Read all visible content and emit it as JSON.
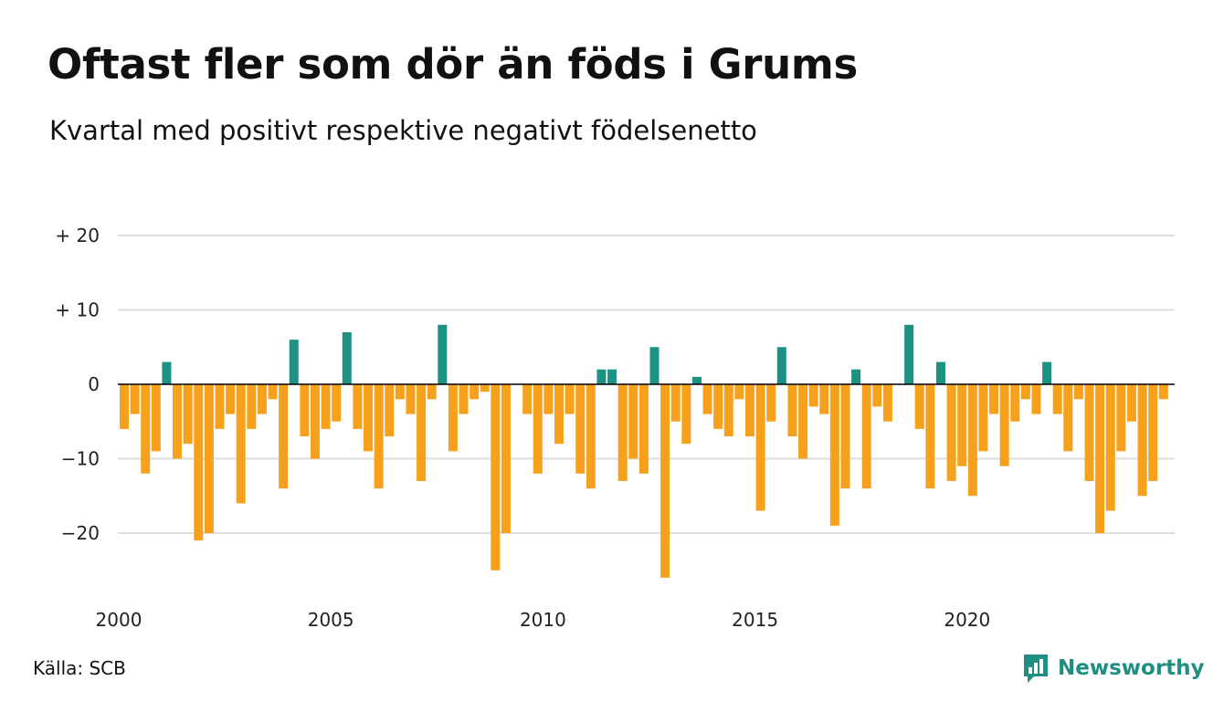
{
  "title": "Oftast fler som dör än föds i Grums",
  "subtitle": "Kvartal med positivt respektive negativt födelsenetto",
  "source": "Källa: SCB",
  "brand": {
    "name": "Newsworthy",
    "icon": "bar-chart-speech-bubble-icon",
    "color": "#1e8f82"
  },
  "colors": {
    "positive": "#1c9284",
    "negative": "#f7a01c",
    "grid": "#dedede",
    "zero_line": "#000000"
  },
  "chart_data": {
    "type": "bar",
    "title": "Oftast fler som dör än föds i Grums",
    "subtitle": "Kvartal med positivt respektive negativt födelsenetto",
    "x_start": 2000,
    "x_ticks": [
      "2000",
      "2005",
      "2010",
      "2015",
      "2020"
    ],
    "y_ticks": [
      {
        "value": 20,
        "label": "+ 20"
      },
      {
        "value": 10,
        "label": "+ 10"
      },
      {
        "value": 0,
        "label": "0"
      },
      {
        "value": -10,
        "label": "−10"
      },
      {
        "value": -20,
        "label": "−20"
      }
    ],
    "ylim": [
      -26,
      20
    ],
    "grid": true,
    "legend": "none",
    "values": [
      -6,
      -4,
      -12,
      -9,
      3,
      -10,
      -8,
      -21,
      -20,
      -6,
      -4,
      -16,
      -6,
      -4,
      -2,
      -14,
      6,
      -7,
      -10,
      -6,
      -5,
      7,
      -6,
      -9,
      -14,
      -7,
      -2,
      -4,
      -13,
      -2,
      8,
      -9,
      -4,
      -2,
      -1,
      -25,
      -20,
      0,
      -4,
      -12,
      -4,
      -8,
      -4,
      -12,
      -14,
      2,
      2,
      -13,
      -10,
      -12,
      5,
      -26,
      -5,
      -8,
      1,
      -4,
      -6,
      -7,
      -2,
      -7,
      -17,
      -5,
      5,
      -7,
      -10,
      -3,
      -4,
      -19,
      -14,
      2,
      -14,
      -3,
      -5,
      0,
      8,
      -6,
      -14,
      3,
      -13,
      -11,
      -15,
      -9,
      -4,
      -11,
      -5,
      -2,
      -4,
      3,
      -4,
      -9,
      -2,
      -13,
      -20,
      -17,
      -9,
      -5,
      -15,
      -13,
      -2
    ]
  }
}
